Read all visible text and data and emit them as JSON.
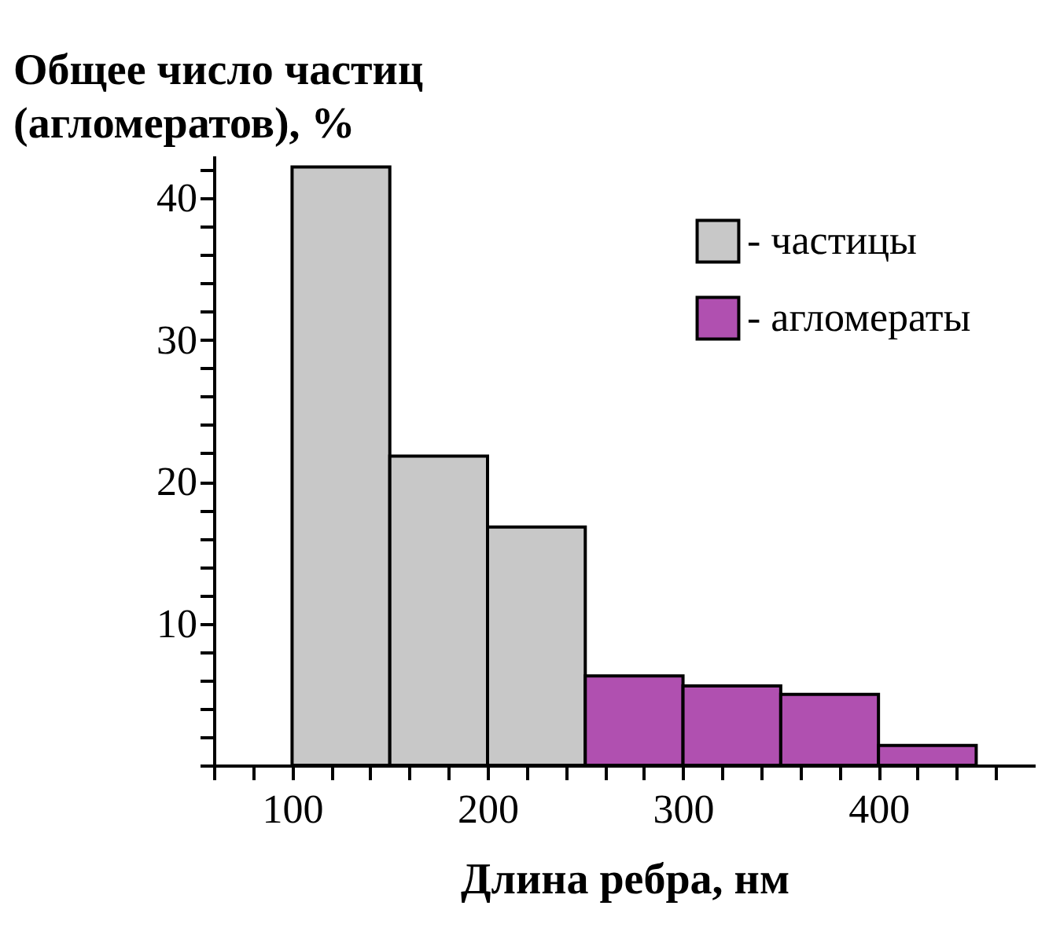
{
  "chart_data": {
    "type": "histogram",
    "xlabel": "Длина ребра, нм",
    "ylabel": "Общее число частиц\n(агломератов), %",
    "bins": [
      100,
      150,
      200,
      250,
      300,
      350,
      400,
      450
    ],
    "series": [
      {
        "name": "- частицы",
        "color": "#c8c8c8",
        "values": [
          42.2,
          21.8,
          16.8,
          null,
          null,
          null,
          null
        ]
      },
      {
        "name": "- агломераты",
        "color": "#b050b0",
        "values": [
          null,
          null,
          null,
          6.3,
          5.6,
          5.0,
          1.4
        ]
      }
    ],
    "xlim": [
      60,
      480
    ],
    "xticks": [
      {
        "value": 60,
        "label": null
      },
      {
        "value": 80,
        "label": null
      },
      100,
      {
        "value": 120,
        "label": null
      },
      {
        "value": 140,
        "label": null
      },
      {
        "value": 160,
        "label": null
      },
      {
        "value": 180,
        "label": null
      },
      200,
      {
        "value": 220,
        "label": null
      },
      {
        "value": 240,
        "label": null
      },
      {
        "value": 260,
        "label": null
      },
      {
        "value": 280,
        "label": null
      },
      300,
      {
        "value": 320,
        "label": null
      },
      {
        "value": 340,
        "label": null
      },
      {
        "value": 360,
        "label": null
      },
      {
        "value": 380,
        "label": null
      },
      400,
      {
        "value": 420,
        "label": null
      },
      {
        "value": 440,
        "label": null
      },
      {
        "value": 460,
        "label": null
      }
    ],
    "ylim": [
      0,
      43
    ],
    "yticks": [
      {
        "value": 0,
        "label": null
      },
      {
        "value": 2,
        "label": null
      },
      {
        "value": 4,
        "label": null
      },
      {
        "value": 6,
        "label": null
      },
      {
        "value": 8,
        "label": null
      },
      10,
      {
        "value": 12,
        "label": null
      },
      {
        "value": 14,
        "label": null
      },
      {
        "value": 16,
        "label": null
      },
      {
        "value": 18,
        "label": null
      },
      20,
      {
        "value": 22,
        "label": null
      },
      {
        "value": 24,
        "label": null
      },
      {
        "value": 26,
        "label": null
      },
      {
        "value": 28,
        "label": null
      },
      30,
      {
        "value": 32,
        "label": null
      },
      {
        "value": 34,
        "label": null
      },
      {
        "value": 36,
        "label": null
      },
      {
        "value": 38,
        "label": null
      },
      40,
      {
        "value": 42,
        "label": null
      }
    ],
    "grid": false,
    "legend": "top right"
  }
}
